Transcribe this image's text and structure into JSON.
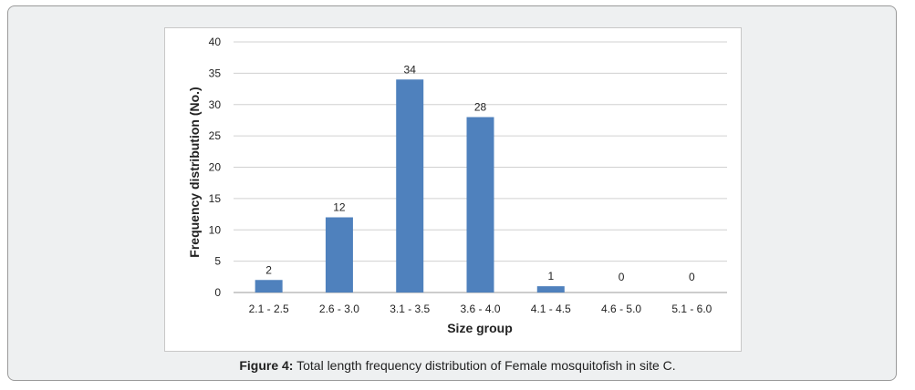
{
  "chart_data": {
    "type": "bar",
    "categories": [
      "2.1 - 2.5",
      "2.6 - 3.0",
      "3.1 - 3.5",
      "3.6 - 4.0",
      "4.1 - 4.5",
      "4.6 - 5.0",
      "5.1 - 6.0"
    ],
    "values": [
      2,
      12,
      34,
      28,
      1,
      0,
      0
    ],
    "data_labels": [
      "2",
      "12",
      "34",
      "28",
      "1",
      "0",
      "0"
    ],
    "title": "",
    "xlabel": "Size group",
    "ylabel": "Frequency distribution (No.)",
    "ylim": [
      0,
      40
    ],
    "yticks": [
      0,
      5,
      10,
      15,
      20,
      25,
      30,
      35,
      40
    ],
    "grid": true,
    "bar_color": "#4f81bd",
    "grid_color": "#d0d0d0"
  },
  "caption": {
    "label": "Figure 4:",
    "text": " Total length frequency distribution of Female mosquitofish in site C."
  }
}
